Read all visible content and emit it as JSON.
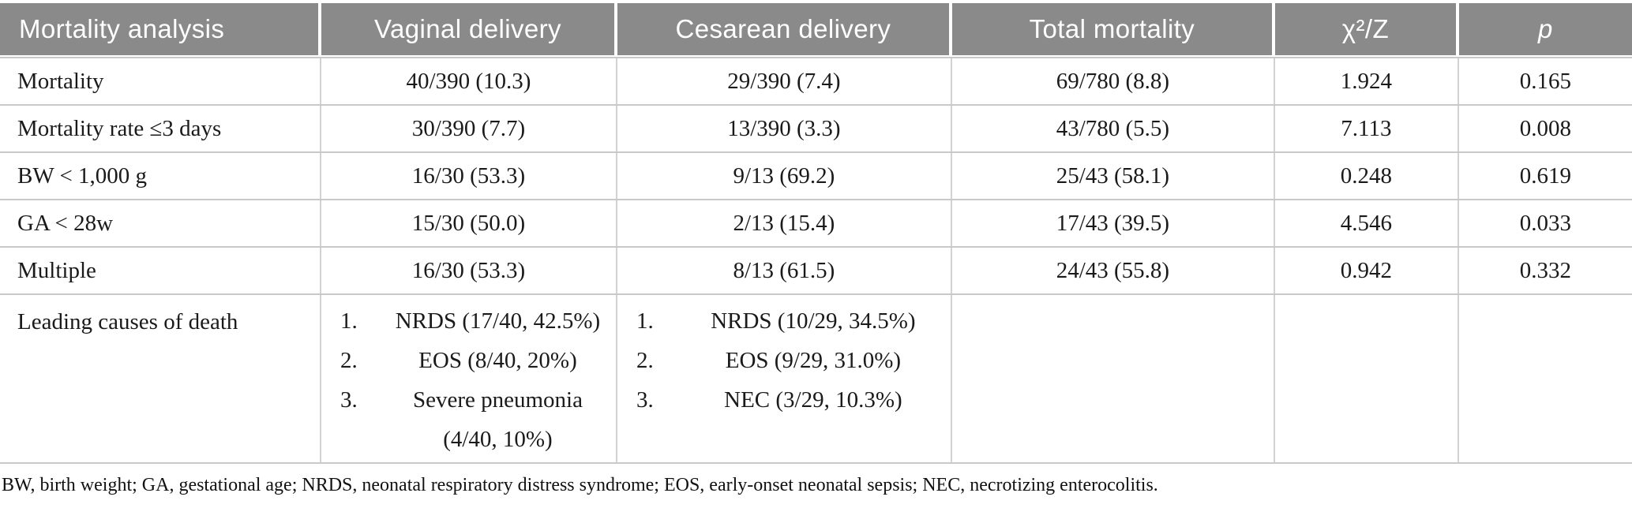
{
  "colors": {
    "header_bg": "#8a8a8a",
    "header_text": "#ffffff",
    "row_border": "#c9c9c9",
    "body_text": "#1a1a1a"
  },
  "table": {
    "columns": [
      "Mortality analysis",
      "Vaginal delivery",
      "Cesarean delivery",
      "Total mortality",
      "χ²/Z",
      "p"
    ],
    "rows": [
      [
        "Mortality",
        "40/390 (10.3)",
        "29/390 (7.4)",
        "69/780 (8.8)",
        "1.924",
        "0.165"
      ],
      [
        "Mortality rate ≤3 days",
        "30/390 (7.7)",
        "13/390 (3.3)",
        "43/780 (5.5)",
        "7.113",
        "0.008"
      ],
      [
        "BW < 1,000 g",
        "16/30 (53.3)",
        "9/13 (69.2)",
        "25/43 (58.1)",
        "0.248",
        "0.619"
      ],
      [
        "GA < 28w",
        "15/30 (50.0)",
        "2/13 (15.4)",
        "17/43 (39.5)",
        "4.546",
        "0.033"
      ],
      [
        "Multiple",
        "16/30 (53.3)",
        "8/13 (61.5)",
        "24/43 (55.8)",
        "0.942",
        "0.332"
      ]
    ],
    "leading_causes": {
      "label": "Leading causes of death",
      "vaginal": [
        {
          "num": "1.",
          "text": "NRDS (17/40, 42.5%)"
        },
        {
          "num": "2.",
          "text": "EOS (8/40, 20%)"
        },
        {
          "num": "3.",
          "text": "Severe pneumonia (4/40, 10%)"
        }
      ],
      "cesarean": [
        {
          "num": "1.",
          "text": "NRDS (10/29, 34.5%)"
        },
        {
          "num": "2.",
          "text": "EOS (9/29, 31.0%)"
        },
        {
          "num": "3.",
          "text": "NEC (3/29, 10.3%)"
        }
      ]
    }
  },
  "footnote": "BW, birth weight; GA, gestational age; NRDS, neonatal respiratory distress syndrome; EOS, early-onset neonatal sepsis; NEC, necrotizing enterocolitis."
}
